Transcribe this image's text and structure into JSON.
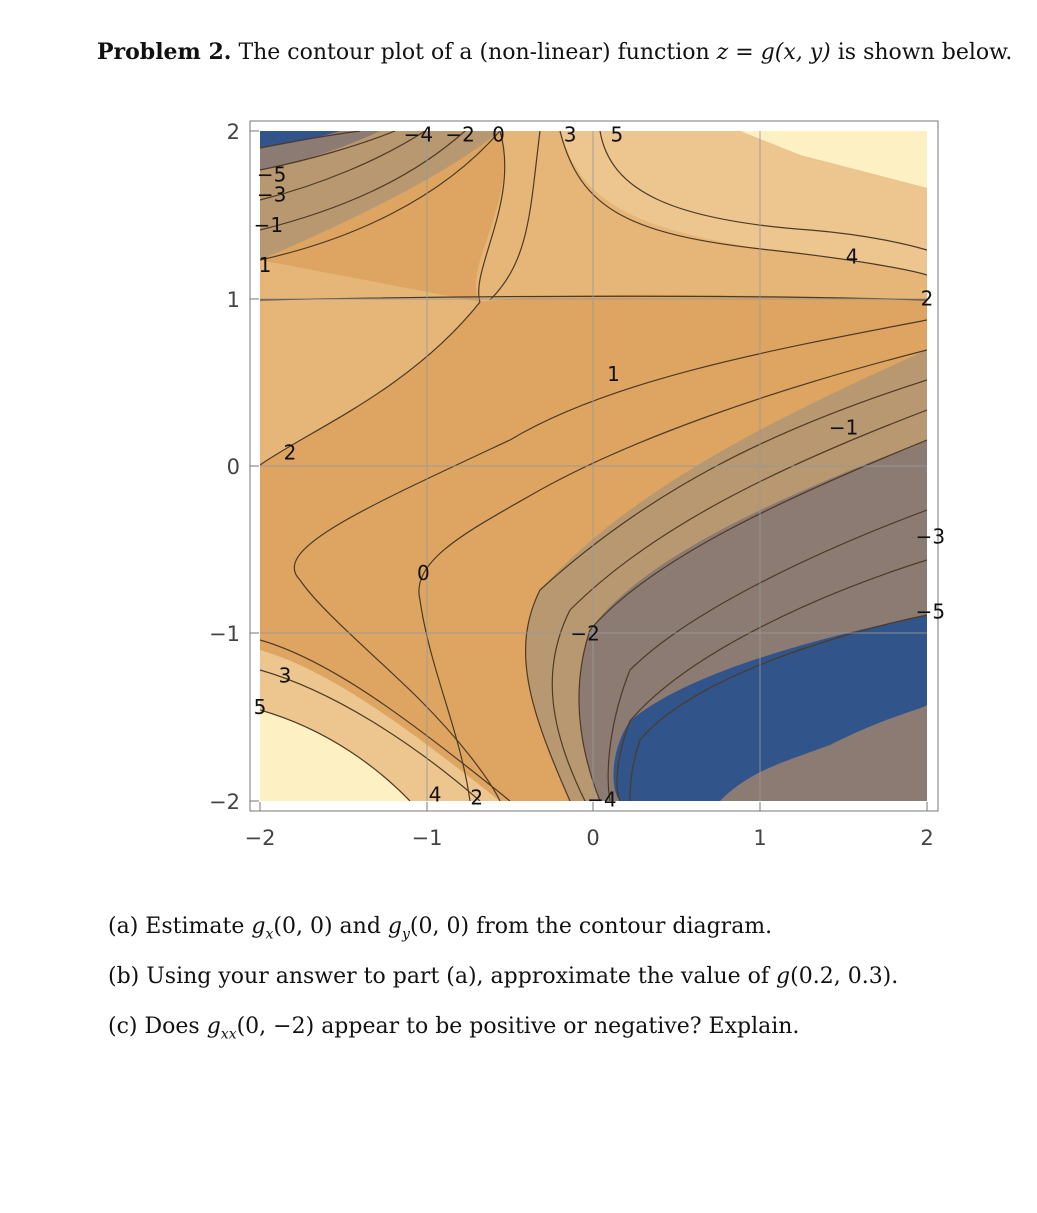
{
  "problem": {
    "label": "Problem 2.",
    "text_before": "The contour plot of a (non-linear) function",
    "math": "z = g(x, y)",
    "text_after": "is shown below."
  },
  "chart_data": {
    "type": "contour",
    "xlim": [
      -2,
      2
    ],
    "ylim": [
      -2,
      2
    ],
    "x_ticks": [
      "−2",
      "−1",
      "0",
      "1",
      "2"
    ],
    "y_ticks": [
      "2",
      "1",
      "0",
      "−1",
      "−2"
    ],
    "grid": true,
    "colors": {
      "very_low": "#31548a",
      "low": "#8c7b73",
      "mid_low": "#b89870",
      "mid": "#dea562",
      "mid_high": "#e6b678",
      "high": "#ecc58f",
      "very_high": "#fdf1c4",
      "contour_line": "#4d3a25"
    },
    "contour_labels": [
      {
        "text": "−4",
        "x": -1.05,
        "y": 1.98
      },
      {
        "text": "−2",
        "x": -0.8,
        "y": 1.98
      },
      {
        "text": "0",
        "x": -0.57,
        "y": 1.98
      },
      {
        "text": "3",
        "x": -0.14,
        "y": 1.98
      },
      {
        "text": "5",
        "x": 0.14,
        "y": 1.98
      },
      {
        "text": "−5",
        "x": -1.93,
        "y": 1.74
      },
      {
        "text": "−3",
        "x": -1.93,
        "y": 1.62
      },
      {
        "text": "−1",
        "x": -1.95,
        "y": 1.44
      },
      {
        "text": "1",
        "x": -1.97,
        "y": 1.2
      },
      {
        "text": "4",
        "x": 1.55,
        "y": 1.25
      },
      {
        "text": "2",
        "x": 2.0,
        "y": 1.0
      },
      {
        "text": "1",
        "x": 0.12,
        "y": 0.55
      },
      {
        "text": "−1",
        "x": 1.5,
        "y": 0.23
      },
      {
        "text": "2",
        "x": -1.82,
        "y": 0.08
      },
      {
        "text": "−3",
        "x": 2.02,
        "y": -0.42
      },
      {
        "text": "0",
        "x": -1.02,
        "y": -0.64
      },
      {
        "text": "−5",
        "x": 2.02,
        "y": -0.87
      },
      {
        "text": "−2",
        "x": -0.05,
        "y": -1.0
      },
      {
        "text": "3",
        "x": -1.85,
        "y": -1.25
      },
      {
        "text": "5",
        "x": -2.0,
        "y": -1.44
      },
      {
        "text": "4",
        "x": -0.95,
        "y": -1.96
      },
      {
        "text": "2",
        "x": -0.7,
        "y": -1.98
      },
      {
        "text": "−4",
        "x": 0.05,
        "y": -1.99
      }
    ]
  },
  "questions": {
    "a": {
      "label": "(a)",
      "text1": "Estimate",
      "g1": "g",
      "s1": "x",
      "arg1": "(0, 0)",
      "and": "and",
      "g2": "g",
      "s2": "y",
      "arg2": "(0, 0)",
      "text2": "from the contour diagram."
    },
    "b": {
      "label": "(b)",
      "text1": "Using your answer to part (a), approximate the value of",
      "g": "g",
      "arg": "(0.2, 0.3)."
    },
    "c": {
      "label": "(c)",
      "text1": "Does",
      "g": "g",
      "s": "xx",
      "arg": "(0, −2)",
      "text2": "appear to be positive or negative? Explain."
    }
  }
}
